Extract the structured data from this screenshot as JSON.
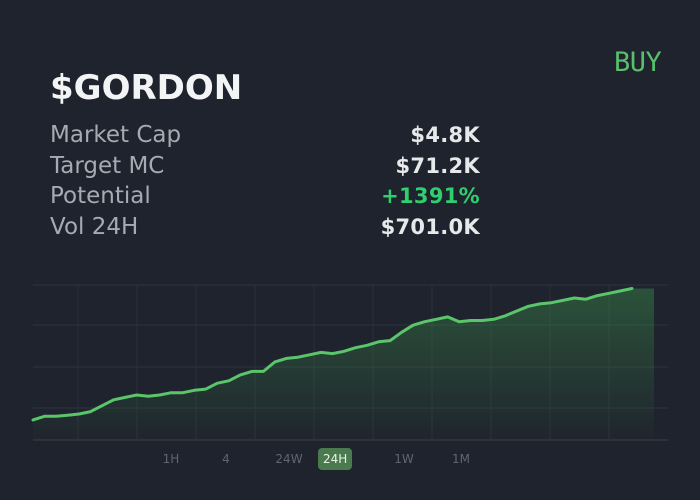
{
  "token": {
    "name": "$GORDON",
    "buy_label": "BUY"
  },
  "stats": [
    {
      "label": "Market Cap",
      "value": "$4.8K"
    },
    {
      "label": "Target MC",
      "value": "$71.2K"
    },
    {
      "label": "Potential",
      "value": "+1391%"
    },
    {
      "label": "Vol 24H",
      "value": "$701.0K"
    }
  ],
  "timeframes": [
    "1H",
    "4",
    "24W",
    "24H",
    "1W",
    "1M"
  ],
  "active_timeframe": "24H",
  "colors": {
    "background": "#1f232d",
    "accent_green": "#58c06a",
    "positive": "#2fcf6e",
    "active_tab": "#4a7a4d"
  },
  "chart_data": {
    "type": "area",
    "values": [
      17,
      20,
      20,
      21,
      22,
      24,
      29,
      34,
      36,
      38,
      37,
      38,
      40,
      40,
      42,
      43,
      48,
      50,
      55,
      58,
      58,
      66,
      69,
      70,
      72,
      74,
      73,
      75,
      78,
      80,
      83,
      84,
      91,
      97,
      100,
      102,
      104,
      100,
      101,
      101,
      102,
      105,
      109,
      113,
      115,
      116,
      118,
      120,
      119,
      122,
      124,
      126,
      128
    ],
    "ylim": [
      0,
      131
    ],
    "grid": true
  }
}
